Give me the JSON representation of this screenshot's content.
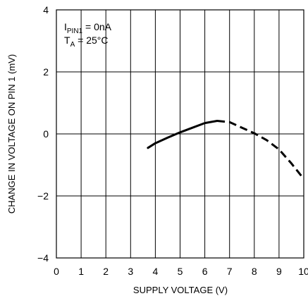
{
  "chart_data": {
    "type": "line",
    "title": "",
    "xlabel": "SUPPLY VOLTAGE (V)",
    "ylabel": "CHANGE IN VOLTAGE ON PIN 1 (mV)",
    "xlim": [
      0,
      10
    ],
    "ylim": [
      -4,
      4
    ],
    "x_ticks": [
      "0",
      "1",
      "2",
      "3",
      "4",
      "5",
      "6",
      "7",
      "8",
      "9",
      "10"
    ],
    "y_ticks": [
      "4",
      "2",
      "0",
      "−2",
      "−4"
    ],
    "grid": true,
    "annotations": {
      "line1_main": "I",
      "line1_sub": "PIN1",
      "line1_rest": " = 0nA",
      "line2_main": "T",
      "line2_sub": "A",
      "line2_rest": " = 25°C"
    },
    "series": [
      {
        "style": "solid",
        "color": "#000000",
        "x": [
          3.7,
          4.0,
          4.5,
          5.0,
          5.5,
          6.0,
          6.5
        ],
        "y": [
          -0.45,
          -0.3,
          -0.12,
          0.05,
          0.2,
          0.35,
          0.42
        ]
      },
      {
        "style": "dashed",
        "color": "#000000",
        "x": [
          6.5,
          7.0,
          7.5,
          8.0,
          8.5,
          9.0,
          9.5,
          10.0
        ],
        "y": [
          0.42,
          0.38,
          0.2,
          0.02,
          -0.2,
          -0.5,
          -0.95,
          -1.45
        ]
      }
    ]
  }
}
